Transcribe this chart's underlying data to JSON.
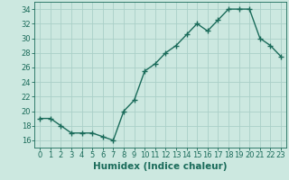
{
  "x": [
    0,
    1,
    2,
    3,
    4,
    5,
    6,
    7,
    8,
    9,
    10,
    11,
    12,
    13,
    14,
    15,
    16,
    17,
    18,
    19,
    20,
    21,
    22,
    23
  ],
  "y": [
    19.0,
    19.0,
    18.0,
    17.0,
    17.0,
    17.0,
    16.5,
    16.0,
    20.0,
    21.5,
    25.5,
    26.5,
    28.0,
    29.0,
    30.5,
    32.0,
    31.0,
    32.5,
    34.0,
    34.0,
    34.0,
    30.0,
    29.0,
    27.5
  ],
  "line_color": "#1a6b5a",
  "marker": "+",
  "marker_size": 4,
  "bg_color": "#cce8e0",
  "grid_color": "#aacfc8",
  "xlabel": "Humidex (Indice chaleur)",
  "ylabel": "",
  "xlim": [
    -0.5,
    23.5
  ],
  "ylim": [
    15.0,
    35.0
  ],
  "yticks": [
    16,
    18,
    20,
    22,
    24,
    26,
    28,
    30,
    32,
    34
  ],
  "xticks": [
    0,
    1,
    2,
    3,
    4,
    5,
    6,
    7,
    8,
    9,
    10,
    11,
    12,
    13,
    14,
    15,
    16,
    17,
    18,
    19,
    20,
    21,
    22,
    23
  ],
  "font_color": "#1a6b5a",
  "xlabel_fontsize": 7.5,
  "tick_fontsize": 6.0,
  "line_width": 1.0
}
